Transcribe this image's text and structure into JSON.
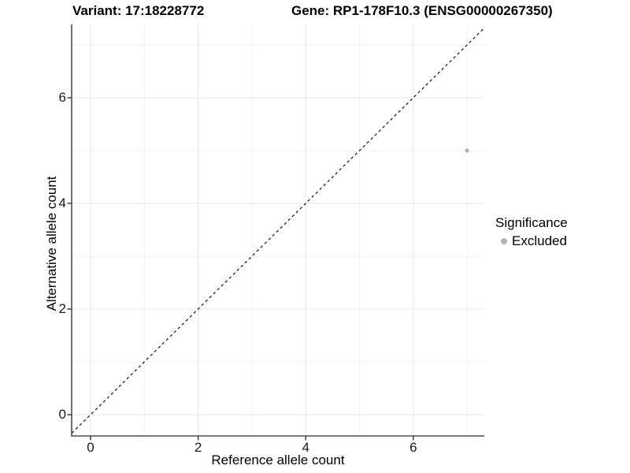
{
  "titles": {
    "variant": "Variant: 17:18228772",
    "gene": "Gene: RP1-178F10.3 (ENSG00000267350)"
  },
  "axes": {
    "x": {
      "label": "Reference allele count"
    },
    "y": {
      "label": "Alternative allele count"
    }
  },
  "legend": {
    "title": "Significance",
    "items": [
      {
        "label": "Excluded",
        "color": "#b5b5b5"
      }
    ]
  },
  "colors": {
    "point": "#adadad",
    "grid_major": "#e7e7e7",
    "grid_minor": "#f2f2f2",
    "axis_line": "#4d4d4d",
    "tick_mark": "#333333",
    "dashed_line": "#111111"
  },
  "chart_data": {
    "type": "scatter",
    "title_left": "Variant: 17:18228772",
    "title_right": "Gene: RP1-178F10.3 (ENSG00000267350)",
    "xlabel": "Reference allele count",
    "ylabel": "Alternative allele count",
    "series": [
      {
        "name": "Excluded",
        "color": "#adadad",
        "points": [
          {
            "x": 7,
            "y": 5
          }
        ]
      }
    ],
    "reference_line": {
      "kind": "identity_y_equals_x",
      "style": "dashed",
      "color": "#111111"
    },
    "xlim": [
      -0.35,
      7.32
    ],
    "ylim": [
      -0.4,
      7.39
    ],
    "x_ticks": [
      0,
      2,
      4,
      6
    ],
    "y_ticks": [
      0,
      2,
      4,
      6
    ],
    "x_minor_grid": [
      1,
      3,
      5,
      7
    ],
    "y_minor_grid": [
      1,
      3,
      5,
      7
    ],
    "grid": true,
    "legend_title": "Significance",
    "legend_position": "right"
  }
}
